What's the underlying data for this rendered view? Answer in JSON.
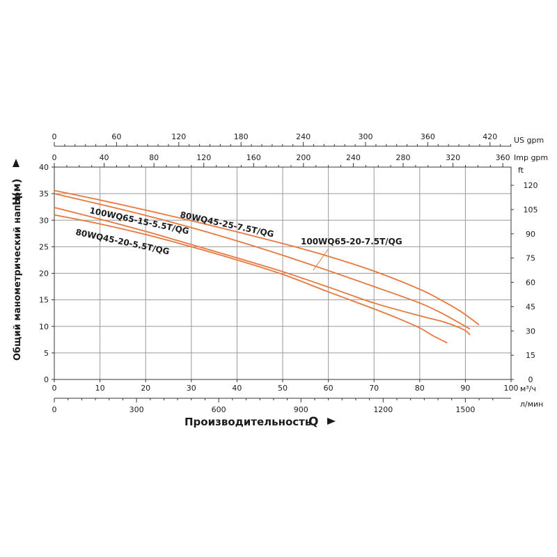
{
  "chart_data": {
    "type": "line",
    "ylabel": "Общий манометрический напор",
    "ylabel_symbol": "H(м)",
    "xlabel": "Производительность",
    "xlabel_symbol": "Q",
    "colors": {
      "curve": "#e8773d",
      "grid": "#9a9a9a",
      "axis": "#333333"
    },
    "x_primary": {
      "unit": "м³/ч",
      "range": [
        0,
        100
      ],
      "ticks": [
        0,
        10,
        20,
        30,
        40,
        50,
        60,
        70,
        80,
        90,
        100
      ]
    },
    "x_lmin": {
      "unit": "л/мин",
      "ticks": [
        0,
        300,
        600,
        900,
        1200,
        1500
      ]
    },
    "x_usgpm": {
      "unit": "US gpm",
      "ticks": [
        0,
        60,
        120,
        180,
        240,
        300,
        360,
        420
      ]
    },
    "x_impgpm": {
      "unit": "Imp gpm",
      "ticks": [
        0,
        40,
        80,
        120,
        160,
        200,
        240,
        280,
        320,
        360
      ]
    },
    "y_primary": {
      "range": [
        0,
        40
      ],
      "ticks": [
        0,
        5,
        10,
        15,
        20,
        25,
        30,
        35,
        40
      ]
    },
    "y_ft": {
      "unit": "ft",
      "ticks": [
        0,
        15,
        30,
        45,
        60,
        75,
        90,
        105,
        120
      ]
    },
    "grid": true,
    "series": [
      {
        "name": "80WQ45-25-7.5T/QG",
        "x": [
          0,
          10,
          20,
          30,
          40,
          50,
          60,
          70,
          80,
          85,
          89,
          93
        ],
        "y": [
          35.6,
          33.8,
          31.9,
          29.9,
          27.8,
          25.6,
          23.2,
          20.4,
          17.0,
          14.8,
          12.8,
          10.3
        ]
      },
      {
        "name": "100WQ65-20-7.5T/QG",
        "x": [
          0,
          10,
          20,
          30,
          40,
          50,
          60,
          70,
          80,
          85,
          89,
          91
        ],
        "y": [
          35.0,
          33.0,
          30.9,
          28.6,
          26.1,
          23.4,
          20.5,
          17.5,
          14.4,
          12.4,
          10.5,
          9.5
        ]
      },
      {
        "name": "100WQ65-15-5.5T/QG",
        "x": [
          0,
          10,
          20,
          30,
          40,
          50,
          60,
          70,
          80,
          85,
          88,
          90,
          91
        ],
        "y": [
          32.4,
          30.2,
          27.9,
          25.4,
          22.9,
          20.3,
          17.4,
          14.4,
          12.0,
          10.9,
          10.0,
          9.2,
          8.4
        ]
      },
      {
        "name": "80WQ45-20-5.5T/QG",
        "x": [
          0,
          10,
          20,
          30,
          40,
          50,
          60,
          70,
          75,
          80,
          83,
          86
        ],
        "y": [
          31.0,
          29.3,
          27.3,
          25.0,
          22.5,
          19.8,
          16.5,
          13.3,
          11.6,
          9.7,
          8.2,
          6.9
        ]
      }
    ],
    "labels": {
      "s1": "80WQ45-25-7.5T/QG",
      "s2": "100WQ65-20-7.5T/QG",
      "s3": "100WQ65-15-5.5T/QG",
      "s4": "80WQ45-20-5.5T/QG"
    }
  }
}
